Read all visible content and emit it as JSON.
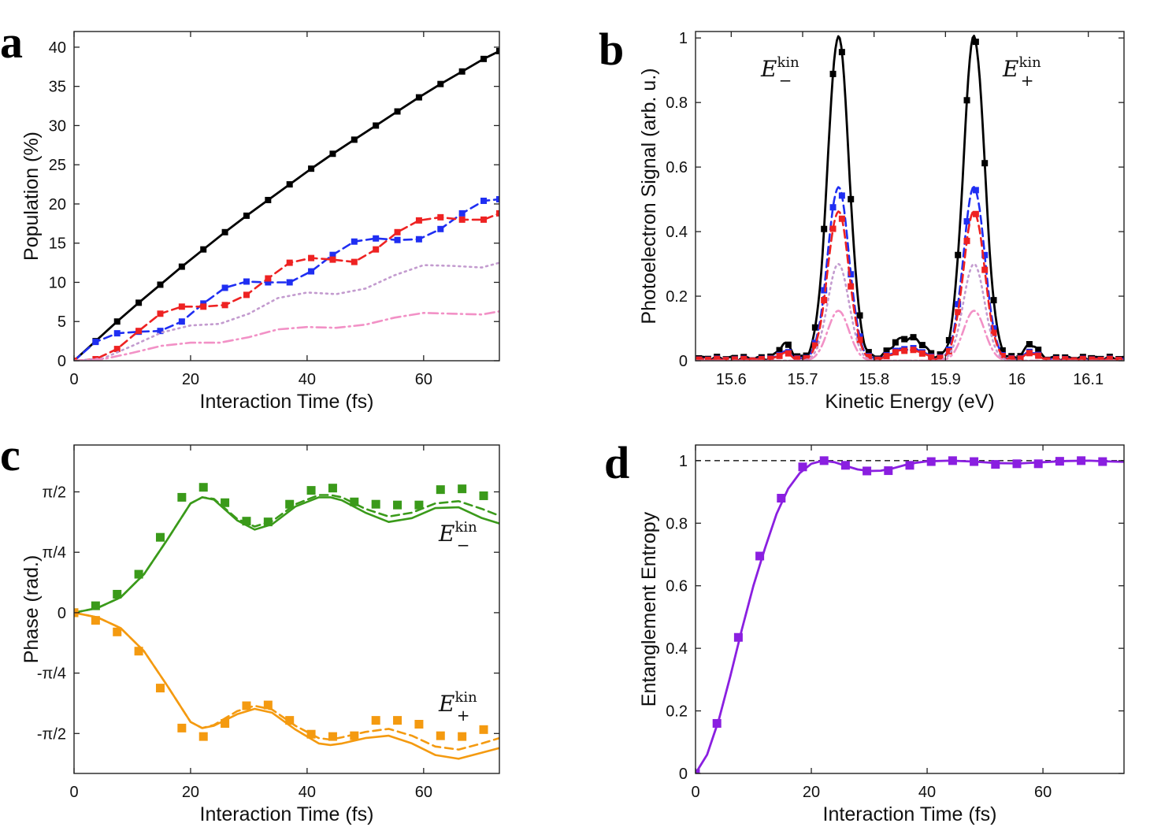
{
  "chart_data": [
    {
      "panel": "a",
      "type": "line",
      "xlabel": "Interaction Time (fs)",
      "ylabel": "Population (%)",
      "xlim": [
        0,
        73
      ],
      "ylim": [
        0,
        42
      ],
      "xticks": [
        0,
        20,
        40,
        60
      ],
      "yticks": [
        0,
        5,
        10,
        15,
        20,
        25,
        30,
        35,
        40
      ],
      "series": [
        {
          "name": "total-black",
          "color": "#000000",
          "style": "solid",
          "markers": true,
          "x": [
            0,
            3.7,
            7.4,
            11.1,
            14.8,
            18.5,
            22.2,
            25.9,
            29.6,
            33.3,
            37,
            40.7,
            44.4,
            48.1,
            51.8,
            55.5,
            59.2,
            62.9,
            66.6,
            70.3,
            73
          ],
          "y": [
            0,
            2.5,
            5,
            7.4,
            9.7,
            12,
            14.2,
            16.4,
            18.5,
            20.5,
            22.5,
            24.5,
            26.4,
            28.2,
            30,
            31.8,
            33.6,
            35.3,
            36.9,
            38.5,
            39.5
          ]
        },
        {
          "name": "blue",
          "color": "#1f2ef2",
          "style": "dashed",
          "markers": true,
          "x": [
            0,
            3.7,
            7.4,
            11.1,
            14.8,
            18.5,
            22.2,
            25.9,
            29.6,
            33.3,
            37,
            40.7,
            44.4,
            48.1,
            51.8,
            55.5,
            59.2,
            62.9,
            66.6,
            70.3,
            73
          ],
          "y": [
            0,
            2.4,
            3.5,
            3.7,
            3.8,
            5,
            7.3,
            9.3,
            10.1,
            10,
            10,
            11.4,
            13.5,
            15.2,
            15.6,
            15.4,
            15.5,
            16.8,
            18.8,
            20.4,
            20.6
          ]
        },
        {
          "name": "red",
          "color": "#ee2222",
          "style": "dashed",
          "markers": true,
          "x": [
            0,
            3.7,
            7.4,
            11.1,
            14.8,
            18.5,
            22.2,
            25.9,
            29.6,
            33.3,
            37,
            40.7,
            44.4,
            48.1,
            51.8,
            55.5,
            59.2,
            62.9,
            66.6,
            70.3,
            73
          ],
          "y": [
            0,
            0.2,
            1.5,
            3.8,
            6,
            6.9,
            6.9,
            7.1,
            8.4,
            10.5,
            12.5,
            13.1,
            12.9,
            12.6,
            14.2,
            16.4,
            17.9,
            18.3,
            18,
            18,
            18.8
          ]
        },
        {
          "name": "purple-dotted",
          "color": "#c39bcf",
          "style": "dotted",
          "markers": false,
          "x": [
            0,
            5,
            10,
            15,
            20,
            25,
            30,
            35,
            40,
            45,
            50,
            55,
            60,
            65,
            70,
            73
          ],
          "y": [
            0,
            0.3,
            1.9,
            3.6,
            4.5,
            4.7,
            6,
            8,
            8.7,
            8.5,
            9.2,
            10.9,
            12.2,
            12.1,
            11.9,
            12.5
          ]
        },
        {
          "name": "pink-dashdot",
          "color": "#f291c6",
          "style": "dashdot",
          "markers": false,
          "x": [
            0,
            5,
            10,
            15,
            20,
            25,
            30,
            35,
            40,
            45,
            50,
            55,
            60,
            65,
            70,
            73
          ],
          "y": [
            0,
            0.2,
            1,
            1.9,
            2.3,
            2.3,
            3,
            4,
            4.3,
            4.2,
            4.6,
            5.5,
            6.1,
            6,
            5.9,
            6.3
          ]
        }
      ]
    },
    {
      "panel": "b",
      "type": "line",
      "xlabel": "Kinetic Energy (eV)",
      "ylabel": "Photoelectron Signal (arb. u.)",
      "xlim": [
        15.55,
        16.15
      ],
      "ylim": [
        0,
        1.02
      ],
      "xticks": [
        15.6,
        15.7,
        15.8,
        15.9,
        16,
        16.1
      ],
      "yticks": [
        0,
        0.2,
        0.4,
        0.6,
        0.8,
        1
      ],
      "peaks": [
        15.75,
        15.94
      ],
      "peak_width_ev": 0.021,
      "series": [
        {
          "name": "black",
          "color": "#000000",
          "style": "solid",
          "markers": true,
          "amplitude": 1.0,
          "side_lobes": true
        },
        {
          "name": "blue",
          "color": "#1f2ef2",
          "style": "dashed",
          "markers": true,
          "amplitude": 0.535,
          "side_lobes": true
        },
        {
          "name": "red",
          "color": "#ee2222",
          "style": "dashed",
          "markers": true,
          "amplitude": 0.46,
          "side_lobes": true
        },
        {
          "name": "purple-dotted",
          "color": "#c39bcf",
          "style": "dotted",
          "markers": false,
          "amplitude": 0.3,
          "side_lobes": false
        },
        {
          "name": "pink-dashdot",
          "color": "#f291c6",
          "style": "dashdot",
          "markers": false,
          "amplitude": 0.155,
          "side_lobes": false
        }
      ],
      "annotations": [
        {
          "main": "E",
          "sup": "kin",
          "sub": "−"
        },
        {
          "main": "E",
          "sup": "kin",
          "sub": "+"
        }
      ]
    },
    {
      "panel": "c",
      "type": "line",
      "xlabel": "Interaction Time (fs)",
      "ylabel": "Phase (rad.)",
      "xlim": [
        0,
        73
      ],
      "ylim": [
        -2.09,
        2.18
      ],
      "xticks": [
        0,
        20,
        40,
        60
      ],
      "yticks": [
        -1.5708,
        -0.7854,
        0,
        0.7854,
        1.5708
      ],
      "ytick_labels": [
        "-π/2",
        "-π/4",
        "0",
        "π/4",
        "π/2"
      ],
      "series": [
        {
          "name": "E-minus-markers",
          "color": "#3a9a1a",
          "style": "markers",
          "x": [
            0,
            3.7,
            7.4,
            11.1,
            14.8,
            18.5,
            22.2,
            25.9,
            29.6,
            33.3,
            37,
            40.7,
            44.4,
            48.1,
            51.8,
            55.5,
            59.2,
            62.9,
            66.6,
            70.3
          ],
          "y": [
            0,
            0.09,
            0.24,
            0.5,
            0.98,
            1.5,
            1.63,
            1.43,
            1.19,
            1.18,
            1.41,
            1.59,
            1.62,
            1.44,
            1.41,
            1.4,
            1.4,
            1.6,
            1.61,
            1.52
          ]
        },
        {
          "name": "E-minus-solid",
          "color": "#3a9a1a",
          "style": "solid",
          "x": [
            0,
            4,
            8,
            12,
            16,
            20,
            22,
            24,
            28,
            31,
            34,
            38,
            42,
            44,
            46,
            50,
            54,
            58,
            62,
            66,
            70,
            73
          ],
          "y": [
            0,
            0.06,
            0.2,
            0.5,
            0.95,
            1.42,
            1.5,
            1.47,
            1.2,
            1.08,
            1.15,
            1.38,
            1.5,
            1.5,
            1.46,
            1.3,
            1.18,
            1.23,
            1.36,
            1.37,
            1.23,
            1.16
          ]
        },
        {
          "name": "E-minus-dashed",
          "color": "#3a9a1a",
          "style": "dashed",
          "x": [
            0,
            4,
            8,
            12,
            16,
            20,
            22,
            24,
            28,
            31,
            34,
            38,
            42,
            44,
            46,
            50,
            54,
            58,
            62,
            66,
            70,
            73
          ],
          "y": [
            0,
            0.06,
            0.2,
            0.5,
            0.95,
            1.42,
            1.5,
            1.48,
            1.22,
            1.12,
            1.19,
            1.41,
            1.53,
            1.53,
            1.5,
            1.35,
            1.25,
            1.3,
            1.42,
            1.45,
            1.35,
            1.26
          ]
        },
        {
          "name": "E-plus-markers",
          "color": "#f49a10",
          "style": "markers",
          "x": [
            0,
            3.7,
            7.4,
            11.1,
            14.8,
            18.5,
            22.2,
            25.9,
            29.6,
            33.3,
            37,
            40.7,
            44.4,
            48.1,
            51.8,
            55.5,
            59.2,
            62.9,
            66.6,
            70.3
          ],
          "y": [
            0,
            -0.1,
            -0.25,
            -0.5,
            -0.98,
            -1.5,
            -1.61,
            -1.44,
            -1.21,
            -1.2,
            -1.4,
            -1.58,
            -1.61,
            -1.6,
            -1.4,
            -1.4,
            -1.45,
            -1.6,
            -1.61,
            -1.52
          ]
        },
        {
          "name": "E-plus-solid",
          "color": "#f49a10",
          "style": "solid",
          "x": [
            0,
            4,
            8,
            12,
            16,
            20,
            22,
            24,
            28,
            31,
            34,
            38,
            42,
            44,
            46,
            50,
            54,
            58,
            62,
            66,
            70,
            73
          ],
          "y": [
            0,
            -0.06,
            -0.2,
            -0.5,
            -0.95,
            -1.42,
            -1.5,
            -1.47,
            -1.32,
            -1.25,
            -1.3,
            -1.52,
            -1.7,
            -1.72,
            -1.7,
            -1.63,
            -1.6,
            -1.7,
            -1.85,
            -1.9,
            -1.82,
            -1.76
          ]
        },
        {
          "name": "E-plus-dashed",
          "color": "#f49a10",
          "style": "dashed",
          "x": [
            0,
            4,
            8,
            12,
            16,
            20,
            22,
            24,
            28,
            31,
            34,
            38,
            42,
            44,
            46,
            50,
            54,
            58,
            62,
            66,
            70,
            73
          ],
          "y": [
            0,
            -0.06,
            -0.2,
            -0.5,
            -0.95,
            -1.42,
            -1.5,
            -1.46,
            -1.28,
            -1.21,
            -1.26,
            -1.47,
            -1.63,
            -1.65,
            -1.62,
            -1.55,
            -1.51,
            -1.6,
            -1.74,
            -1.78,
            -1.7,
            -1.63
          ]
        }
      ],
      "annotations": [
        {
          "main": "E",
          "sup": "kin",
          "sub": "−"
        },
        {
          "main": "E",
          "sup": "kin",
          "sub": "+"
        }
      ]
    },
    {
      "panel": "d",
      "type": "line",
      "xlabel": "Interaction Time (fs)",
      "ylabel": "Entanglement Entropy",
      "xlim": [
        0,
        74
      ],
      "ylim": [
        0,
        1.05
      ],
      "xticks": [
        0,
        20,
        40,
        60
      ],
      "yticks": [
        0,
        0.2,
        0.4,
        0.6,
        0.8,
        1
      ],
      "reference_line": 1,
      "series": [
        {
          "name": "entropy-markers",
          "color": "#8a1fe0",
          "style": "markers",
          "x": [
            0,
            3.7,
            7.4,
            11.1,
            14.8,
            18.5,
            22.2,
            25.9,
            29.6,
            33.3,
            37,
            40.7,
            44.4,
            48.1,
            51.8,
            55.5,
            59.2,
            62.9,
            66.6,
            70.3
          ],
          "y": [
            0,
            0.16,
            0.435,
            0.695,
            0.88,
            0.98,
            1.0,
            0.985,
            0.967,
            0.968,
            0.985,
            0.997,
            1.0,
            0.997,
            0.988,
            0.99,
            0.99,
            0.998,
            1.0,
            0.997
          ]
        },
        {
          "name": "entropy-line",
          "color": "#8a1fe0",
          "style": "solid",
          "x": [
            0,
            2,
            4,
            6,
            8,
            10,
            12,
            14,
            16,
            18,
            20,
            22,
            24,
            26,
            28,
            30,
            32,
            34,
            36,
            38,
            40,
            44,
            48,
            52,
            56,
            60,
            64,
            68,
            72,
            74
          ],
          "y": [
            0,
            0.06,
            0.17,
            0.31,
            0.46,
            0.6,
            0.72,
            0.83,
            0.91,
            0.96,
            0.99,
            1.0,
            0.995,
            0.983,
            0.972,
            0.967,
            0.968,
            0.975,
            0.985,
            0.993,
            0.998,
            1.0,
            0.997,
            0.992,
            0.991,
            0.995,
            0.999,
            1.0,
            0.997,
            0.996
          ]
        }
      ]
    }
  ],
  "panel_letters": {
    "a": "a",
    "b": "b",
    "c": "c",
    "d": "d"
  }
}
